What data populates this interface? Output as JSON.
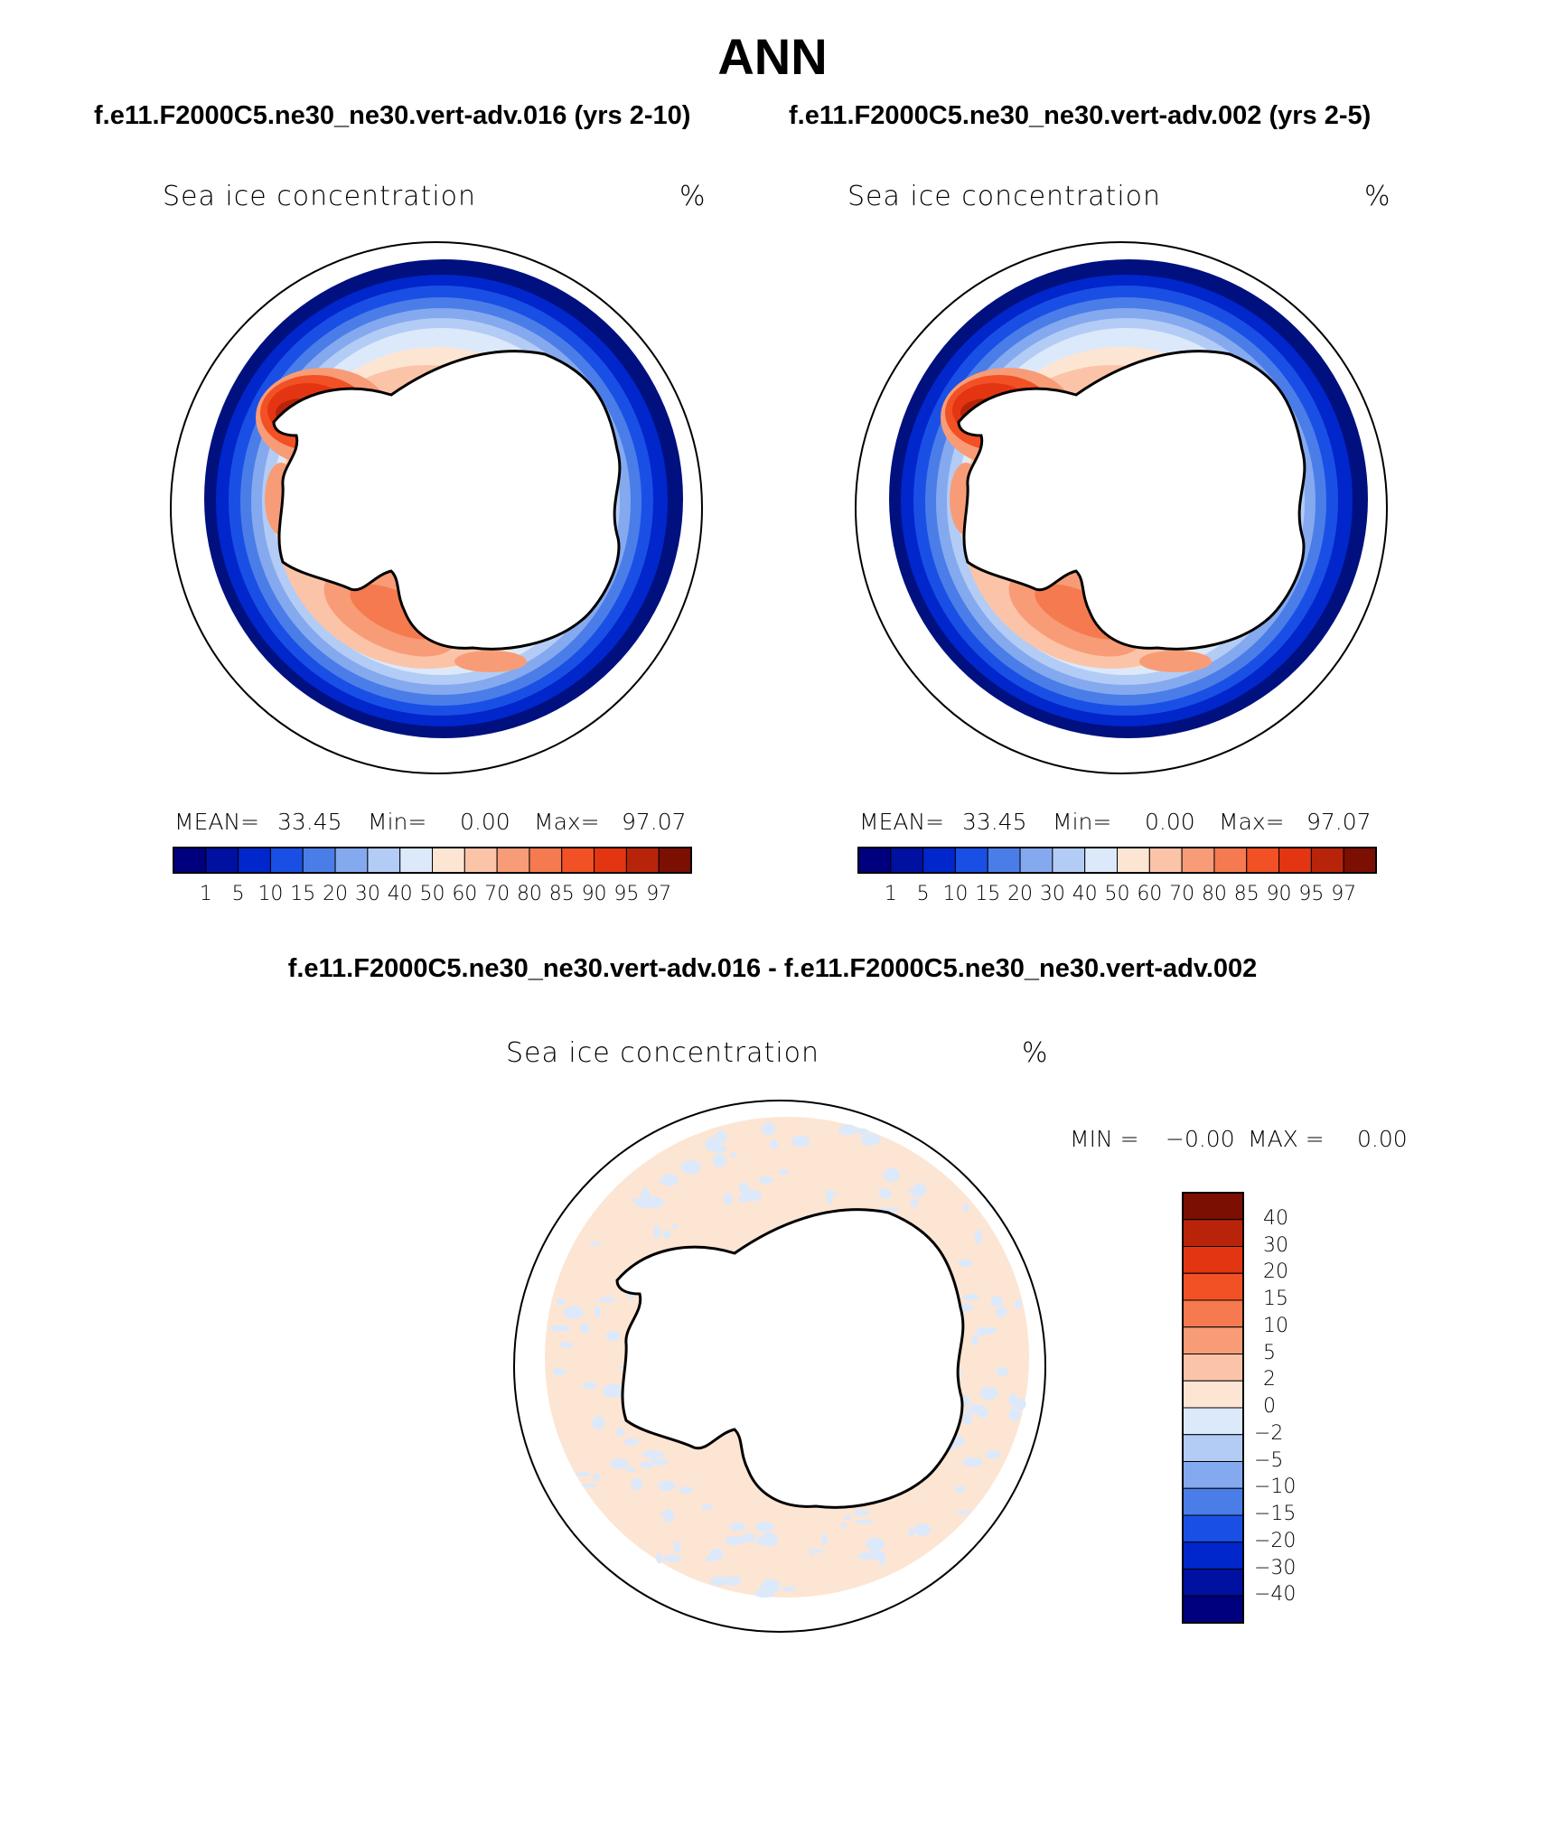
{
  "title": "ANN",
  "case_left_title": "f.e11.F2000C5.ne30_ne30.vert-adv.016 (yrs 2-10)",
  "case_right_title": "f.e11.F2000C5.ne30_ne30.vert-adv.002 (yrs 2-5)",
  "diff_title": "f.e11.F2000C5.ne30_ne30.vert-adv.016 - f.e11.F2000C5.ne30_ne30.vert-adv.002",
  "panels": [
    {
      "variable": "Sea ice concentration",
      "units": "%",
      "stats": {
        "mean_label": "MEAN=",
        "mean": "33.45",
        "min_label": "Min=",
        "min": "0.00",
        "max_label": "Max=",
        "max": "97.07"
      }
    },
    {
      "variable": "Sea ice concentration",
      "units": "%",
      "stats": {
        "mean_label": "MEAN=",
        "mean": "33.45",
        "min_label": "Min=",
        "min": "0.00",
        "max_label": "Max=",
        "max": "97.07"
      }
    }
  ],
  "diff_panel": {
    "variable": "Sea ice concentration",
    "units": "%",
    "stats": {
      "min_label": "MIN =",
      "min": "−0.00",
      "max_label": "MAX =",
      "max": "0.00"
    }
  },
  "colorbar_conc": {
    "levels": [
      "1",
      "5",
      "10",
      "15",
      "20",
      "30",
      "40",
      "50",
      "60",
      "70",
      "80",
      "85",
      "90",
      "95",
      "97"
    ],
    "colors": [
      "#00007f",
      "#0010a0",
      "#0026cc",
      "#1a4fe6",
      "#4a7de8",
      "#85a9ef",
      "#b3ccf6",
      "#dce9fb",
      "#fde5d3",
      "#fbc4a8",
      "#f89c77",
      "#f67a50",
      "#f25025",
      "#e43512",
      "#b8240a",
      "#7a0f02"
    ]
  },
  "colorbar_diff": {
    "levels": [
      "40",
      "30",
      "20",
      "15",
      "10",
      "5",
      "2",
      "0",
      "−2",
      "−5",
      "−10",
      "−15",
      "−20",
      "−30",
      "−40"
    ],
    "colors": [
      "#7a0f02",
      "#b8240a",
      "#e43512",
      "#f25025",
      "#f67a50",
      "#f89c77",
      "#fbc4a8",
      "#fde5d3",
      "#dce9fb",
      "#b3ccf6",
      "#85a9ef",
      "#4a7de8",
      "#1a4fe6",
      "#0026cc",
      "#0010a0",
      "#00007f"
    ]
  },
  "map_legend": {
    "ocean_blue_edge": "#0020c0",
    "ice_red_core": "#b82408",
    "land": "#ffffff",
    "diff_pos": "#fde5d3",
    "diff_neg": "#dce9fb"
  }
}
